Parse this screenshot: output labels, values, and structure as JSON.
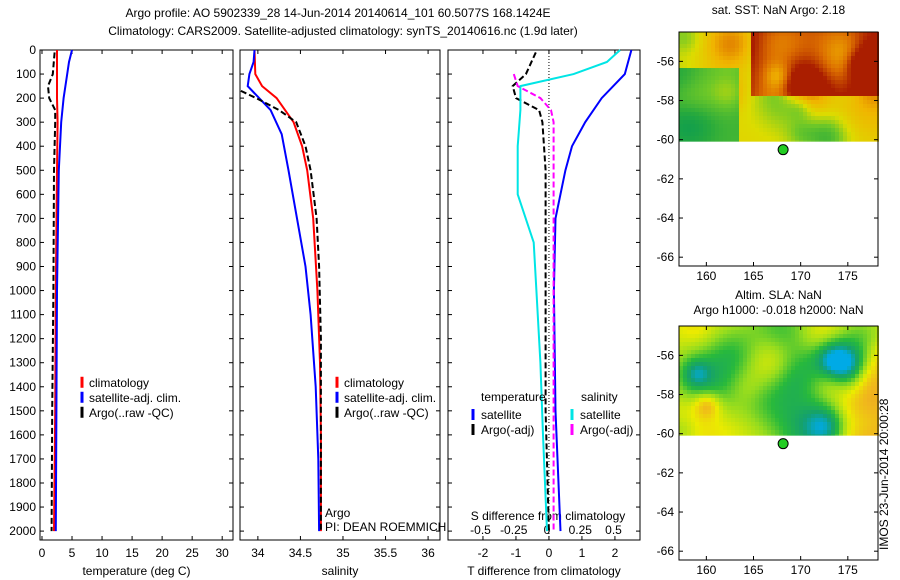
{
  "title": {
    "line1": "Argo profile: AO 5902339_28 14-Jun-2014 20140614_101 60.5077S 168.1424E",
    "line2": "Climatology: CARS2009. Satellite-adjusted climatology: synTS_20140616.nc (1.9d later)"
  },
  "footer_stamp": "IMOS 23-Jun-2014 20:00:28",
  "colors": {
    "climatology": "#ff0000",
    "satellite": "#0000ff",
    "argo": "#000000",
    "salt_satellite": "#00e5e5",
    "salt_argo": "#ff00ff",
    "float_marker": "#22cc22"
  },
  "chart_data": [
    {
      "type": "line",
      "id": "temperature",
      "xlabel": "temperature (deg C)",
      "ylabel": "",
      "xlim": [
        -0.33,
        31.8
      ],
      "ylim": [
        2037,
        0
      ],
      "xticks": [
        0,
        5,
        10,
        15,
        20,
        25,
        30
      ],
      "yticks": [
        0,
        100,
        200,
        300,
        400,
        500,
        600,
        700,
        800,
        900,
        1000,
        1100,
        1200,
        1300,
        1400,
        1500,
        1600,
        1700,
        1800,
        1900,
        2000
      ],
      "legend": {
        "placement": "center-right",
        "entries": [
          "climatology",
          "satellite-adj. clim.",
          "Argo(..raw -QC)"
        ]
      },
      "series": [
        {
          "name": "climatology",
          "color": "#ff0000",
          "style": "solid",
          "depth": [
            0,
            100,
            200,
            300,
            500,
            1000,
            1500,
            2000
          ],
          "values": [
            2.5,
            2.5,
            2.5,
            2.6,
            2.5,
            2.3,
            2.2,
            2.0
          ]
        },
        {
          "name": "satellite-adj. clim.",
          "color": "#0000ff",
          "style": "solid",
          "depth": [
            0,
            50,
            100,
            200,
            300,
            500,
            1000,
            1500,
            2000
          ],
          "values": [
            5.0,
            4.5,
            4.2,
            3.6,
            3.2,
            2.8,
            2.5,
            2.4,
            2.3
          ]
        },
        {
          "name": "Argo(..raw -QC)",
          "color": "#000000",
          "style": "dashed",
          "depth": [
            10,
            100,
            150,
            200,
            250,
            300,
            500,
            1000,
            1500,
            2000
          ],
          "values": [
            2.1,
            1.8,
            1.0,
            1.2,
            2.2,
            2.2,
            2.0,
            1.9,
            1.7,
            1.6
          ]
        }
      ]
    },
    {
      "type": "line",
      "id": "salinity",
      "xlabel": "salinity",
      "xlim": [
        33.79,
        36.14
      ],
      "ylim": [
        2037,
        0
      ],
      "xticks": [
        34,
        34.5,
        35,
        35.5,
        36
      ],
      "legend": {
        "placement": "center-right",
        "entries": [
          "climatology",
          "satellite-adj. clim.",
          "Argo(..raw -QC)"
        ]
      },
      "annotations": [
        "Argo",
        "PI: DEAN ROEMMICH"
      ],
      "series": [
        {
          "name": "climatology",
          "color": "#ff0000",
          "style": "solid",
          "depth": [
            0,
            100,
            150,
            200,
            300,
            400,
            500,
            700,
            1000,
            1300,
            1600,
            2000
          ],
          "values": [
            33.96,
            33.97,
            34.05,
            34.22,
            34.42,
            34.52,
            34.58,
            34.65,
            34.7,
            34.73,
            34.74,
            34.74
          ]
        },
        {
          "name": "satellite-adj. clim.",
          "color": "#0000ff",
          "style": "solid",
          "depth": [
            0,
            50,
            100,
            150,
            250,
            350,
            500,
            700,
            900,
            1100,
            1400,
            1700,
            2000
          ],
          "values": [
            33.96,
            33.95,
            33.9,
            33.88,
            34.15,
            34.28,
            34.36,
            34.46,
            34.56,
            34.62,
            34.68,
            34.71,
            34.72
          ]
        },
        {
          "name": "Argo(..raw -QC)",
          "color": "#000000",
          "style": "dashed",
          "depth": [
            170,
            200,
            250,
            300,
            400,
            500,
            700,
            900,
            1200,
            1500,
            2000
          ],
          "values": [
            33.8,
            33.98,
            34.25,
            34.45,
            34.56,
            34.62,
            34.69,
            34.72,
            34.74,
            34.74,
            34.74
          ]
        }
      ]
    },
    {
      "type": "line",
      "id": "difference",
      "xlabel": "T difference from climatology",
      "xlabel2": "S difference from climatology",
      "xlim": [
        -3.06,
        2.76
      ],
      "x2lim": [
        -0.5,
        0.5
      ],
      "ylim": [
        2037,
        0
      ],
      "xticks": [
        -2,
        -1,
        0,
        1,
        2
      ],
      "x2ticks": [
        -0.5,
        -0.25,
        0,
        0.25,
        0.5
      ],
      "x2ticklabels": [
        "-0.5",
        "-0.25",
        "0",
        "0.25",
        "0.5"
      ],
      "legend": {
        "placement": "lower-center",
        "temperature_heading": "temperature",
        "salinity_heading": "salinity",
        "entries": [
          "satellite",
          "Argo(-adj)",
          "satellite",
          "Argo(-adj)"
        ]
      },
      "series": [
        {
          "name": "T satellite",
          "color": "#0000ff",
          "style": "solid",
          "axis": "T",
          "depth": [
            0,
            50,
            100,
            200,
            300,
            400,
            500,
            700,
            1000,
            1500,
            2000
          ],
          "values": [
            2.5,
            2.4,
            2.3,
            1.6,
            1.1,
            0.7,
            0.5,
            0.2,
            0.15,
            0.2,
            0.35
          ]
        },
        {
          "name": "T Argo(-adj)",
          "color": "#000000",
          "style": "dashed",
          "axis": "T",
          "depth": [
            10,
            100,
            150,
            200,
            250,
            300,
            500,
            1000,
            1500,
            2000
          ],
          "values": [
            -0.4,
            -0.7,
            -1.1,
            -1.0,
            -0.3,
            -0.2,
            -0.1,
            -0.1,
            -0.1,
            0.0
          ]
        },
        {
          "name": "S satellite",
          "color": "#00e5e5",
          "style": "solid",
          "axis": "S",
          "depth": [
            0,
            50,
            100,
            150,
            250,
            400,
            600,
            800,
            1000,
            1300,
            1600,
            2000
          ],
          "values": [
            0.55,
            0.45,
            0.2,
            -0.2,
            -0.2,
            -0.22,
            -0.22,
            -0.1,
            -0.08,
            -0.05,
            -0.03,
            0.0
          ]
        },
        {
          "name": "S Argo(-adj)",
          "color": "#ff00ff",
          "style": "dashed",
          "axis": "S",
          "depth": [
            100,
            150,
            200,
            250,
            300,
            500,
            1000,
            1500,
            2000
          ],
          "values": [
            -0.25,
            -0.22,
            -0.05,
            0.03,
            0.05,
            0.05,
            0.05,
            0.05,
            0.05
          ]
        }
      ]
    },
    {
      "type": "heatmap",
      "id": "sst-map",
      "title": "sat. SST: NaN Argo: 2.18",
      "xlim": [
        157.1,
        178.2
      ],
      "ylim": [
        -66.45,
        -54.5
      ],
      "xticks": [
        160,
        165,
        170,
        175
      ],
      "yticks": [
        -56,
        -58,
        -60,
        -62,
        -64,
        -66
      ],
      "data_south_limit": -60.1,
      "float_position": {
        "lon": 168.14,
        "lat": -60.51
      }
    },
    {
      "type": "heatmap",
      "id": "sla-map",
      "title": "Altim. SLA: NaN",
      "subtitle": "Argo h1000: -0.018 h2000: NaN",
      "xlim": [
        157.1,
        178.2
      ],
      "ylim": [
        -66.45,
        -54.5
      ],
      "xticks": [
        160,
        165,
        170,
        175
      ],
      "yticks": [
        -56,
        -58,
        -60,
        -62,
        -64,
        -66
      ],
      "data_south_limit": -60.1,
      "float_position": {
        "lon": 168.14,
        "lat": -60.51
      }
    }
  ]
}
